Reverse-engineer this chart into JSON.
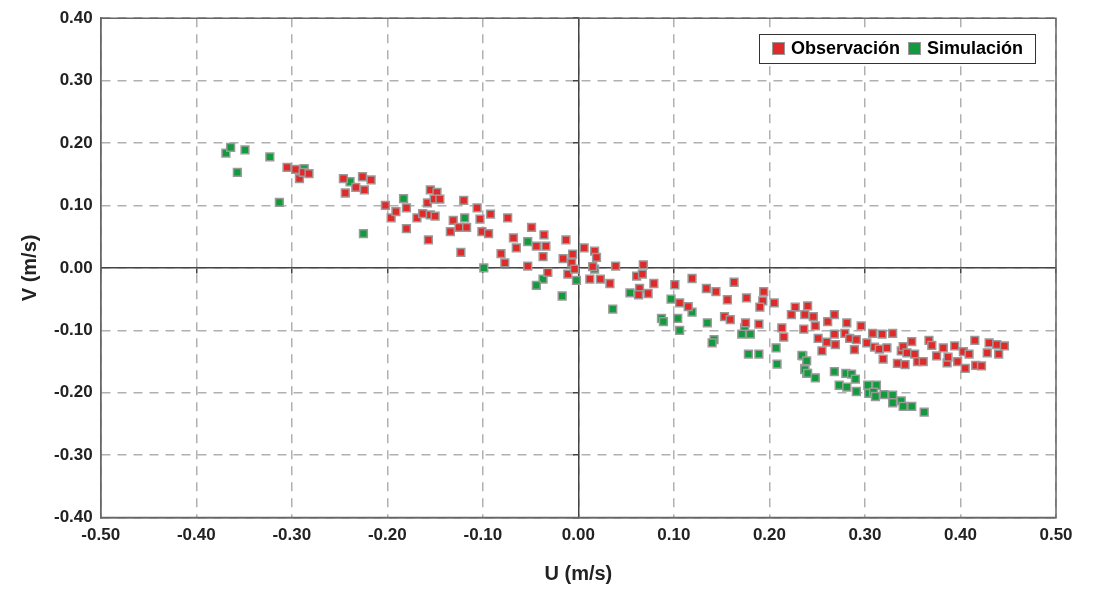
{
  "chart_data": {
    "type": "scatter",
    "xlabel": "U (m/s)",
    "ylabel": "V (m/s)",
    "xlim": [
      -0.5,
      0.5
    ],
    "xticks": [
      {
        "value": -0.5,
        "label": "-0.50"
      },
      {
        "value": -0.4,
        "label": "-0.40"
      },
      {
        "value": -0.3,
        "label": "-0.30"
      },
      {
        "value": -0.2,
        "label": "-0.20"
      },
      {
        "value": -0.1,
        "label": "-0.10"
      },
      {
        "value": 0,
        "label": "0.00"
      },
      {
        "value": 0.1,
        "label": "0.10"
      },
      {
        "value": 0.2,
        "label": "0.20"
      },
      {
        "value": 0.3,
        "label": "0.30"
      },
      {
        "value": 0.4,
        "label": "0.40"
      },
      {
        "value": 0.5,
        "label": "0.50"
      }
    ],
    "ylim": [
      -0.4,
      0.4
    ],
    "yticks": [
      {
        "value": -0.4,
        "label": "-0.40"
      },
      {
        "value": -0.3,
        "label": "-0.30"
      },
      {
        "value": -0.2,
        "label": "-0.20"
      },
      {
        "value": -0.1,
        "label": "-0.10"
      },
      {
        "value": 0,
        "label": "0.00"
      },
      {
        "value": 0.1,
        "label": "0.10"
      },
      {
        "value": 0.2,
        "label": "0.20"
      },
      {
        "value": 0.3,
        "label": "0.30"
      },
      {
        "value": 0.4,
        "label": "0.40"
      }
    ],
    "grid": true,
    "legend": "top right",
    "marker": "square",
    "series": [
      {
        "name": "Observación",
        "color": "#e02a2a",
        "x": [
          -0.305,
          -0.296,
          -0.292,
          -0.288,
          -0.282,
          -0.246,
          -0.244,
          -0.233,
          -0.226,
          -0.224,
          -0.217,
          -0.202,
          -0.196,
          -0.191,
          -0.18,
          -0.18,
          -0.169,
          -0.163,
          -0.157,
          -0.155,
          -0.148,
          -0.158,
          -0.151,
          -0.145,
          -0.155,
          -0.15,
          -0.134,
          -0.131,
          -0.125,
          -0.123,
          -0.12,
          -0.117,
          -0.106,
          -0.103,
          -0.101,
          -0.094,
          -0.092,
          -0.081,
          -0.077,
          -0.074,
          -0.068,
          -0.065,
          -0.053,
          -0.049,
          -0.044,
          -0.036,
          -0.034,
          -0.037,
          -0.032,
          -0.013,
          -0.016,
          -0.007,
          -0.011,
          -0.004,
          0.012,
          0.006,
          -0.006,
          0.017,
          0.019,
          0.015,
          0.023,
          0.033,
          0.039,
          0.061,
          0.068,
          0.067,
          0.064,
          0.063,
          0.073,
          0.079,
          0.101,
          0.119,
          0.106,
          0.115,
          0.134,
          0.144,
          0.156,
          0.163,
          0.153,
          0.159,
          0.176,
          0.175,
          0.189,
          0.194,
          0.193,
          0.19,
          0.205,
          0.213,
          0.215,
          0.227,
          0.223,
          0.237,
          0.236,
          0.24,
          0.246,
          0.248,
          0.251,
          0.255,
          0.26,
          0.261,
          0.268,
          0.268,
          0.269,
          0.279,
          0.281,
          0.284,
          0.291,
          0.289,
          0.296,
          0.302,
          0.308,
          0.31,
          0.318,
          0.315,
          0.319,
          0.323,
          0.329,
          0.338,
          0.34,
          0.344,
          0.349,
          0.352,
          0.334,
          0.342,
          0.355,
          0.361,
          0.367,
          0.37,
          0.375,
          0.382,
          0.386,
          0.387,
          0.394,
          0.397,
          0.403,
          0.405,
          0.409,
          0.415,
          0.416,
          0.422,
          0.428,
          0.43,
          0.438,
          0.44,
          0.446
        ],
        "values": [
          0.161,
          0.158,
          0.143,
          0.153,
          0.151,
          0.143,
          0.12,
          0.129,
          0.146,
          0.125,
          0.141,
          0.1,
          0.08,
          0.09,
          0.096,
          0.063,
          0.08,
          0.087,
          0.045,
          0.125,
          0.121,
          0.104,
          0.11,
          0.11,
          0.085,
          0.083,
          0.058,
          0.076,
          0.065,
          0.025,
          0.108,
          0.065,
          0.096,
          0.078,
          0.058,
          0.055,
          0.086,
          0.023,
          0.008,
          0.08,
          0.048,
          0.032,
          0.003,
          0.065,
          0.035,
          0.053,
          0.035,
          0.018,
          -0.007,
          0.045,
          0.015,
          0.008,
          -0.01,
          -0.002,
          -0.018,
          0.032,
          0.022,
          0.027,
          0.017,
          0.002,
          -0.018,
          -0.025,
          0.003,
          -0.013,
          0.005,
          -0.01,
          -0.033,
          -0.043,
          -0.041,
          -0.025,
          -0.027,
          -0.017,
          -0.056,
          -0.062,
          -0.033,
          -0.038,
          -0.051,
          -0.023,
          -0.078,
          -0.083,
          -0.048,
          -0.088,
          -0.09,
          -0.038,
          -0.053,
          -0.063,
          -0.056,
          -0.096,
          -0.111,
          -0.063,
          -0.075,
          -0.075,
          -0.098,
          -0.061,
          -0.078,
          -0.093,
          -0.113,
          -0.133,
          -0.119,
          -0.086,
          -0.075,
          -0.106,
          -0.123,
          -0.105,
          -0.088,
          -0.113,
          -0.115,
          -0.131,
          -0.093,
          -0.12,
          -0.105,
          -0.127,
          -0.106,
          -0.13,
          -0.146,
          -0.128,
          -0.105,
          -0.133,
          -0.126,
          -0.136,
          -0.118,
          -0.138,
          -0.153,
          -0.155,
          -0.15,
          -0.15,
          -0.116,
          -0.124,
          -0.141,
          -0.128,
          -0.152,
          -0.143,
          -0.125,
          -0.15,
          -0.134,
          -0.161,
          -0.138,
          -0.116,
          -0.156,
          -0.157,
          -0.136,
          -0.12,
          -0.123,
          -0.138,
          -0.125
        ]
      },
      {
        "name": "Simulación",
        "color": "#119a3e",
        "x": [
          -0.369,
          -0.364,
          -0.349,
          -0.357,
          -0.323,
          -0.313,
          -0.287,
          -0.239,
          -0.225,
          -0.183,
          -0.119,
          -0.099,
          -0.053,
          -0.037,
          -0.044,
          -0.017,
          -0.002,
          0.017,
          0.054,
          0.036,
          0.097,
          0.087,
          0.089,
          0.104,
          0.106,
          0.119,
          0.135,
          0.142,
          0.14,
          0.174,
          0.171,
          0.18,
          0.178,
          0.189,
          0.207,
          0.208,
          0.235,
          0.237,
          0.239,
          0.234,
          0.239,
          0.237,
          0.24,
          0.248,
          0.268,
          0.28,
          0.286,
          0.29,
          0.273,
          0.281,
          0.291,
          0.303,
          0.312,
          0.304,
          0.309,
          0.311,
          0.32,
          0.329,
          0.329,
          0.338,
          0.34,
          0.349,
          0.362
        ],
        "values": [
          0.184,
          0.193,
          0.189,
          0.153,
          0.178,
          0.105,
          0.159,
          0.138,
          0.055,
          0.111,
          0.08,
          0.0,
          0.042,
          -0.018,
          -0.028,
          -0.045,
          -0.02,
          -0.002,
          -0.04,
          -0.066,
          -0.05,
          -0.081,
          -0.086,
          -0.081,
          -0.1,
          -0.071,
          -0.088,
          -0.115,
          -0.12,
          -0.096,
          -0.106,
          -0.106,
          -0.138,
          -0.138,
          -0.128,
          -0.154,
          -0.141,
          -0.161,
          -0.169,
          -0.14,
          -0.149,
          -0.163,
          -0.169,
          -0.176,
          -0.166,
          -0.169,
          -0.17,
          -0.178,
          -0.188,
          -0.191,
          -0.198,
          -0.188,
          -0.188,
          -0.201,
          -0.199,
          -0.206,
          -0.203,
          -0.204,
          -0.216,
          -0.213,
          -0.222,
          -0.222,
          -0.231
        ]
      }
    ]
  }
}
